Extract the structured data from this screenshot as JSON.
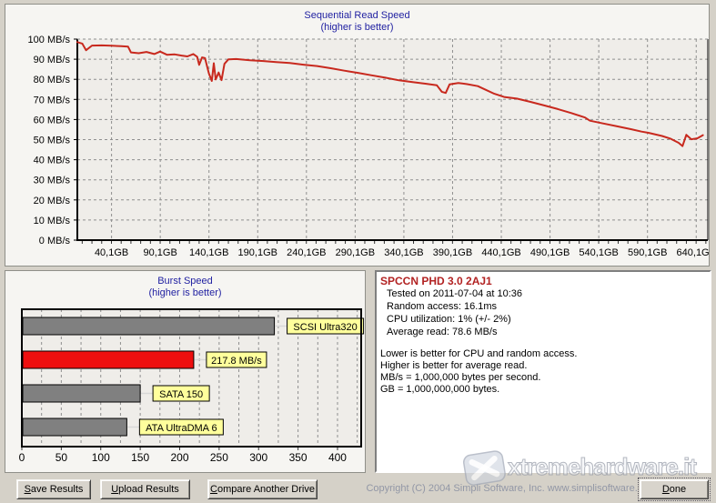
{
  "colors": {
    "window_bg": "#D5D1C8",
    "title_navy": "#2222A2",
    "line_red": "#C8291E",
    "bar_red": "#EE0F0F",
    "bar_gray": "#808080",
    "label_yellow": "#FFFF9C",
    "info_title_red": "#B22222",
    "copyright_gray": "#9297A6",
    "plot_bg": "#EFEDE9",
    "grid_gray": "#8F8F8F"
  },
  "chart_data": [
    {
      "type": "line",
      "title": "Sequential Read Speed",
      "subtitle": "(higher is better)",
      "ylabel": "MB/s",
      "ylim": [
        0,
        100
      ],
      "y_ticks": [
        "0 MB/s",
        "10 MB/s",
        "20 MB/s",
        "30 MB/s",
        "40 MB/s",
        "50 MB/s",
        "60 MB/s",
        "70 MB/s",
        "80 MB/s",
        "90 MB/s",
        "100 MB/s"
      ],
      "xlim": [
        5,
        652
      ],
      "x_ticks": [
        "40,1GB",
        "90,1GB",
        "140,1GB",
        "190,1GB",
        "240,1GB",
        "290,1GB",
        "340,1GB",
        "390,1GB",
        "440,1GB",
        "490,1GB",
        "540,1GB",
        "590,1GB",
        "640,1GB"
      ],
      "x_tick_values": [
        40.1,
        90.1,
        140.1,
        190.1,
        240.1,
        290.1,
        340.1,
        390.1,
        440.1,
        490.1,
        540.1,
        590.1,
        640.1
      ],
      "grid": true,
      "series": [
        {
          "name": "sequential-read-speed",
          "color": "#C8291E",
          "points": [
            [
              5,
              98.5
            ],
            [
              10,
              97.8
            ],
            [
              14,
              94.5
            ],
            [
              20,
              96.8
            ],
            [
              30,
              96.9
            ],
            [
              40,
              96.7
            ],
            [
              50,
              96.5
            ],
            [
              57,
              96.3
            ],
            [
              60,
              93.4
            ],
            [
              68,
              93.0
            ],
            [
              76,
              93.6
            ],
            [
              84,
              92.6
            ],
            [
              90,
              93.8
            ],
            [
              97,
              92.2
            ],
            [
              105,
              92.4
            ],
            [
              112,
              91.8
            ],
            [
              118,
              91.4
            ],
            [
              124,
              92.6
            ],
            [
              128,
              91.2
            ],
            [
              130,
              87.2
            ],
            [
              133,
              90.9
            ],
            [
              136,
              90.6
            ],
            [
              140,
              82.9
            ],
            [
              143,
              79.2
            ],
            [
              145,
              88.0
            ],
            [
              147,
              79.9
            ],
            [
              150,
              83.4
            ],
            [
              153,
              79.6
            ],
            [
              156,
              87.7
            ],
            [
              160,
              89.9
            ],
            [
              168,
              90.1
            ],
            [
              182,
              89.5
            ],
            [
              196,
              89.1
            ],
            [
              209,
              88.6
            ],
            [
              223,
              88.1
            ],
            [
              237,
              87.3
            ],
            [
              251,
              86.6
            ],
            [
              265,
              85.5
            ],
            [
              279,
              84.3
            ],
            [
              293,
              83.2
            ],
            [
              307,
              82.0
            ],
            [
              321,
              80.8
            ],
            [
              335,
              79.5
            ],
            [
              349,
              78.6
            ],
            [
              363,
              77.8
            ],
            [
              374,
              77.0
            ],
            [
              379,
              73.8
            ],
            [
              383,
              73.2
            ],
            [
              387,
              77.5
            ],
            [
              396,
              78.2
            ],
            [
              405,
              77.6
            ],
            [
              416,
              76.6
            ],
            [
              424,
              74.8
            ],
            [
              433,
              72.8
            ],
            [
              443,
              71.2
            ],
            [
              456,
              70.4
            ],
            [
              470,
              68.8
            ],
            [
              484,
              67.0
            ],
            [
              498,
              65.2
            ],
            [
              512,
              63.2
            ],
            [
              526,
              61.0
            ],
            [
              531,
              59.4
            ],
            [
              545,
              58.0
            ],
            [
              559,
              56.6
            ],
            [
              573,
              55.2
            ],
            [
              584,
              54.0
            ],
            [
              591,
              53.4
            ],
            [
              605,
              51.8
            ],
            [
              614,
              50.4
            ],
            [
              622,
              48.4
            ],
            [
              626,
              46.8
            ],
            [
              630,
              52.4
            ],
            [
              635,
              50.2
            ],
            [
              641,
              50.6
            ],
            [
              647,
              52.2
            ]
          ]
        }
      ]
    },
    {
      "type": "bar",
      "title": "Burst Speed",
      "subtitle": "(higher is better)",
      "orientation": "horizontal",
      "xlim": [
        0,
        430
      ],
      "x_ticks": [
        0,
        50,
        100,
        150,
        200,
        250,
        300,
        350,
        400
      ],
      "grid_step": 25,
      "label_bg": "#FFFF9C",
      "bars": [
        {
          "label": "SCSI Ultra320",
          "value": 320,
          "color": "#808080",
          "label_w": 84
        },
        {
          "label": "217.8 MB/s",
          "value": 217.8,
          "color": "#EE0F0F",
          "label_w": 66
        },
        {
          "label": "SATA 150",
          "value": 150,
          "color": "#808080",
          "label_w": 62
        },
        {
          "label": "ATA UltraDMA 6",
          "value": 133,
          "color": "#808080",
          "label_w": 92
        }
      ]
    }
  ],
  "info_panel": {
    "title": "SPCCN PHD 3.0 2AJ1",
    "stats": [
      "Tested on 2011-07-04 at 10:36",
      "Random access: 16.1ms",
      "CPU utilization: 1% (+/- 2%)",
      "Average read: 78.6 MB/s"
    ],
    "notes": [
      "Lower is better for CPU and random access.",
      "Higher is better for average read.",
      "MB/s = 1,000,000 bytes per second.",
      "GB = 1,000,000,000 bytes."
    ]
  },
  "footer": {
    "save_label": "Save Results",
    "upload_label": "Upload Results",
    "compare_label": "Compare Another Drive",
    "done_label": "Done",
    "copyright": "Copyright (C) 2004 Simpli Software, Inc. www.simplisoftware.com"
  },
  "watermark": {
    "text": "xtremehardware.it"
  }
}
